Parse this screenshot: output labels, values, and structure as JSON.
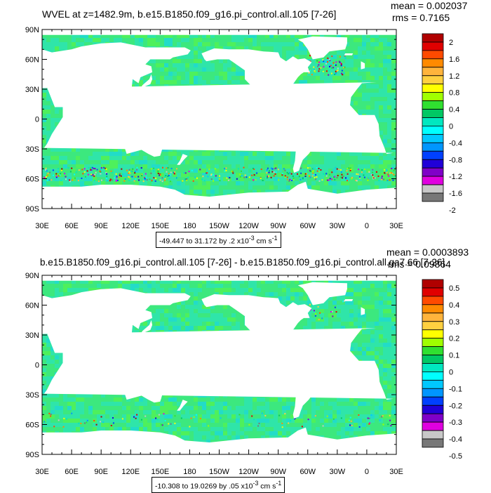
{
  "panels": [
    {
      "title": "WVEL at z=1482.9m, b.e15.B1850.f09_g16.pi_control.all.105 [7-26]",
      "mean_text": "mean = 0.002037",
      "rms_text": "rms = 0.7165",
      "range_text": "-49.447 to 31.172 by .2 x10",
      "range_exp": "-3",
      "range_unit": " cm s",
      "range_unit_exp": "-1",
      "colorbar": {
        "labels": [
          "2",
          "1.6",
          "1.2",
          "0.8",
          "0.4",
          "0",
          "-0.4",
          "-0.8",
          "-1.2",
          "-1.6",
          "-2"
        ]
      }
    },
    {
      "title": "b.e15.B1850.f09_g16.pi_control.all.105 [7-26] - b.e15.B1850.f09_g16.pi_control.all.ga7.66 [7-26]",
      "mean_text": "mean = 0.0003893",
      "rms_text": "rms = 0.09864",
      "range_text": "-10.308 to 19.0269 by .05 x10",
      "range_exp": "-3",
      "range_unit": " cm s",
      "range_unit_exp": "-1",
      "colorbar": {
        "labels": [
          "0.5",
          "0.4",
          "0.3",
          "0.2",
          "0.1",
          "0",
          "-0.1",
          "-0.2",
          "-0.3",
          "-0.4",
          "-0.5"
        ]
      }
    }
  ],
  "colormap": [
    "#b00000",
    "#e00000",
    "#ff4a00",
    "#ff8a00",
    "#ffb43c",
    "#ffd040",
    "#ffff00",
    "#a0ff00",
    "#30e030",
    "#00c864",
    "#00e8c0",
    "#00ffff",
    "#00c8ff",
    "#0096ff",
    "#0040ff",
    "#2000d8",
    "#8000c8",
    "#e000e0",
    "#c8c8c8",
    "#787878"
  ],
  "ocean_colors": [
    "#3ce87e",
    "#2fe5a9",
    "#4ef05c",
    "#22dcc8"
  ],
  "land_color": "#ffffff",
  "chart_data": [
    {
      "type": "heatmap",
      "title": "WVEL at z=1482.9m, b.e15.B1850.f09_g16.pi_control.all.105 [7-26]",
      "x_ticks": [
        "30E",
        "60E",
        "90E",
        "120E",
        "150E",
        "180",
        "150W",
        "120W",
        "90W",
        "60W",
        "30W",
        "0",
        "30E"
      ],
      "y_ticks": [
        "90N",
        "60N",
        "30N",
        "0",
        "30S",
        "60S",
        "90S"
      ],
      "xlim": [
        30,
        390
      ],
      "ylim": [
        -90,
        90
      ],
      "colorbar_levels": [
        2,
        1.6,
        1.2,
        0.8,
        0.4,
        0,
        -0.4,
        -0.8,
        -1.2,
        -1.6,
        -2
      ],
      "mean": 0.002037,
      "rms": 0.7165,
      "min": -49.447,
      "max": 31.172,
      "contour_interval": 0.2
    },
    {
      "type": "heatmap",
      "title": "b.e15.B1850.f09_g16.pi_control.all.105 [7-26] - b.e15.B1850.f09_g16.pi_control.all.ga7.66 [7-26]",
      "x_ticks": [
        "30E",
        "60E",
        "90E",
        "120E",
        "150E",
        "180",
        "150W",
        "120W",
        "90W",
        "60W",
        "30W",
        "0",
        "30E"
      ],
      "y_ticks": [
        "90N",
        "60N",
        "30N",
        "0",
        "30S",
        "60S",
        "90S"
      ],
      "xlim": [
        30,
        390
      ],
      "ylim": [
        -90,
        90
      ],
      "colorbar_levels": [
        0.5,
        0.4,
        0.3,
        0.2,
        0.1,
        0,
        -0.1,
        -0.2,
        -0.3,
        -0.4,
        -0.5
      ],
      "mean": 0.0003893,
      "rms": 0.09864,
      "min": -10.308,
      "max": 19.0269,
      "contour_interval": 0.05
    }
  ]
}
